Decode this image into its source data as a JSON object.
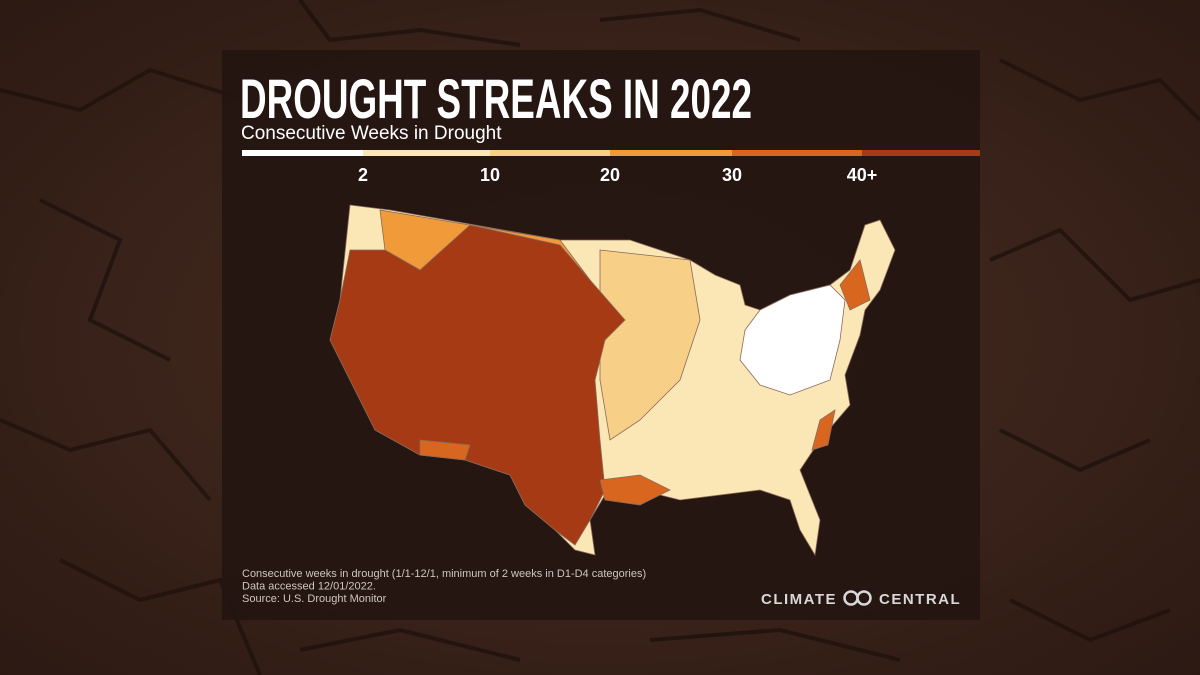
{
  "header": {
    "title": "DROUGHT STREAKS IN 2022",
    "subtitle": "Consecutive Weeks in Drought"
  },
  "legend": {
    "colors": [
      "#ffffff",
      "#fbe7b5",
      "#f7cf86",
      "#f19a3a",
      "#d9661f",
      "#a63a14"
    ],
    "labels": [
      "2",
      "10",
      "20",
      "30",
      "40+"
    ]
  },
  "footer": {
    "notes": [
      "Consecutive weeks in drought (1/1-12/1, minimum of 2 weeks in D1-D4 categories)",
      "Data accessed 12/01/2022.",
      "Source: U.S. Drought Monitor"
    ]
  },
  "logo": {
    "left": "CLIMATE",
    "right": "CENTRAL"
  }
}
